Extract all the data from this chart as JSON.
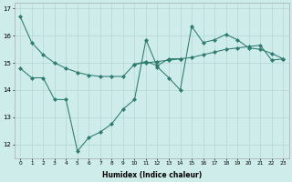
{
  "xlabel": "Humidex (Indice chaleur)",
  "bg_color": "#ceecea",
  "line_color": "#2d7a6e",
  "grid_color": "#b8dbd8",
  "xlim": [
    -0.5,
    23.5
  ],
  "ylim": [
    11.5,
    17.2
  ],
  "xtick_labels": [
    "0",
    "1",
    "2",
    "3",
    "4",
    "5",
    "6",
    "7",
    "8",
    "9",
    "10",
    "11",
    "12",
    "13",
    "14",
    "15",
    "16",
    "17",
    "18",
    "19",
    "20",
    "21",
    "22",
    "23"
  ],
  "ytick_values": [
    12,
    13,
    14,
    15,
    16,
    17
  ],
  "series1_x": [
    0,
    1,
    2,
    3,
    4,
    5,
    6,
    7,
    8,
    9,
    10,
    11,
    12,
    13,
    14,
    15,
    16,
    17,
    18,
    19,
    20,
    21,
    22,
    23
  ],
  "series1_y": [
    16.7,
    15.75,
    15.3,
    15.0,
    14.8,
    14.65,
    14.55,
    14.5,
    14.5,
    14.5,
    14.95,
    15.0,
    15.05,
    15.1,
    15.15,
    15.2,
    15.3,
    15.4,
    15.5,
    15.55,
    15.6,
    15.65,
    15.1,
    15.15
  ],
  "series2_x": [
    0,
    1,
    2,
    3,
    4,
    5,
    6,
    7,
    8,
    9,
    10,
    11,
    12,
    13,
    14,
    15,
    16,
    17,
    18,
    19,
    20,
    21,
    22,
    23
  ],
  "series2_y": [
    14.8,
    14.45,
    14.45,
    13.65,
    13.65,
    11.75,
    12.25,
    12.45,
    12.75,
    13.3,
    13.65,
    15.85,
    14.85,
    14.45,
    14.0,
    16.35,
    15.75,
    15.85,
    16.05,
    15.85,
    15.55,
    15.5,
    15.35,
    15.15
  ],
  "series3_x": [
    10,
    11,
    12,
    13,
    14
  ],
  "series3_y": [
    14.95,
    15.05,
    14.9,
    15.15,
    15.15
  ],
  "marker": "D",
  "markersize": 2.2,
  "linewidth": 0.75
}
